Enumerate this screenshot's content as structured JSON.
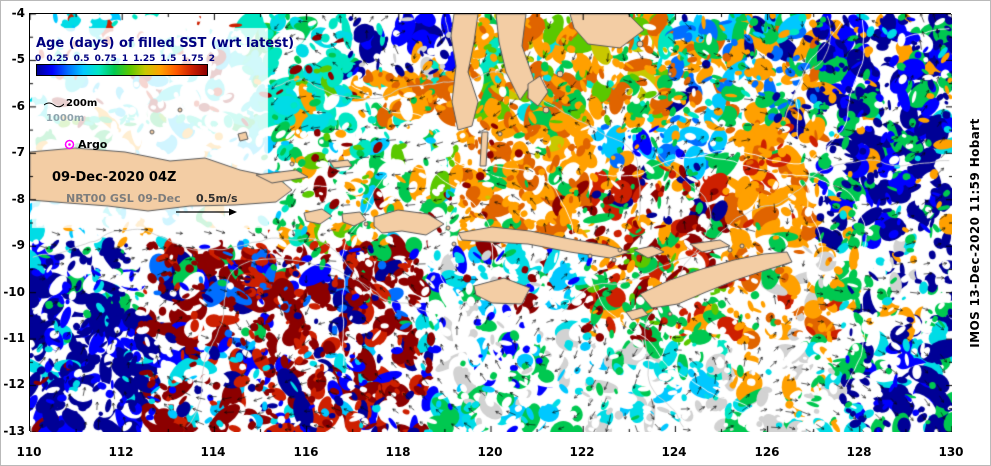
{
  "legend": {
    "title": "Age (days) of filled SST (wrt latest)",
    "colorbar": {
      "tick_labels": [
        "0",
        "0.25",
        "0.5",
        "0.75",
        "1",
        "1.25",
        "1.5",
        "1.75",
        "2"
      ],
      "colors": [
        "#000096",
        "#0000ff",
        "#006eff",
        "#00c8ff",
        "#00e6c3",
        "#00c850",
        "#5ac800",
        "#c8c800",
        "#ffa000",
        "#ff5a00",
        "#cd2000",
        "#8c0000"
      ]
    }
  },
  "annotations": {
    "contour_200m": "200m",
    "contour_1000m": "1000m",
    "argo": "Argo",
    "datetime": "09-Dec-2020 04Z",
    "model_run": "NRT00 GSL 09-Dec",
    "velocity_scale": "0.5m/s"
  },
  "axes": {
    "x_ticks": [
      "110",
      "112",
      "114",
      "116",
      "118",
      "120",
      "122",
      "124",
      "126",
      "128",
      "130"
    ],
    "y_ticks": [
      "-4",
      "-5",
      "-6",
      "-7",
      "-8",
      "-9",
      "-10",
      "-11",
      "-12",
      "-13"
    ]
  },
  "credit": "IMOS 13-Dec-2020 11:59 Hobart",
  "map_colors": {
    "land": "#f3cda4",
    "argo_marker": "#ff00ff",
    "title_text": "#000080"
  },
  "chart_data": {
    "type": "heatmap",
    "title": "Age (days) of filled SST (wrt latest)",
    "colorbar_ticks": [
      0,
      0.25,
      0.5,
      0.75,
      1,
      1.25,
      1.5,
      1.75,
      2
    ],
    "colorbar_range": [
      0,
      2
    ],
    "x_ticks": [
      110,
      112,
      114,
      116,
      118,
      120,
      122,
      124,
      126,
      128,
      130
    ],
    "y_ticks": [
      -4,
      -5,
      -6,
      -7,
      -8,
      -9,
      -10,
      -11,
      -12,
      -13
    ],
    "x_range": [
      110,
      130
    ],
    "y_range": [
      -13,
      -4
    ],
    "vector_scale_m_per_s": 0.5
  }
}
